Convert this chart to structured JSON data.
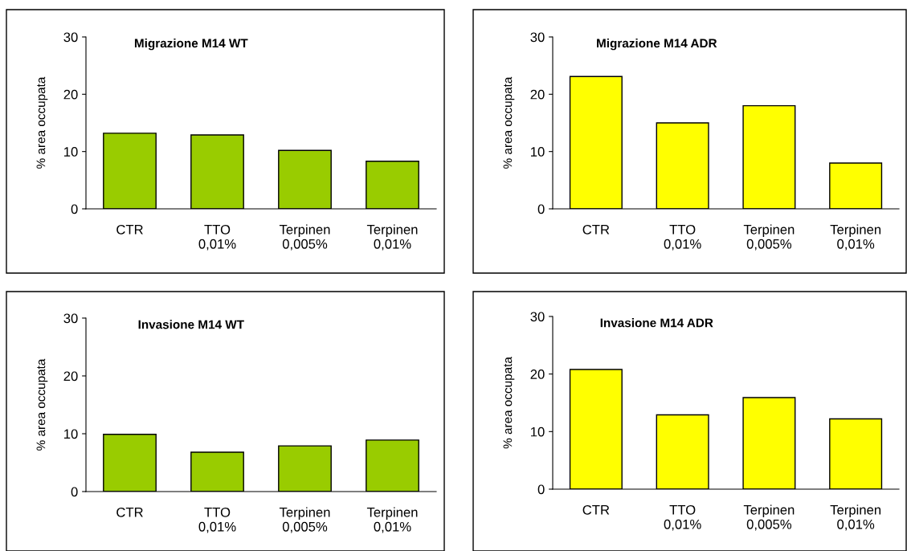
{
  "chart_data": [
    {
      "type": "bar",
      "title": "Migrazione M14 WT",
      "ylabel": "% area occupata",
      "categories": [
        "CTR",
        "TTO\n0,01%",
        "Terpinen\n0,005%",
        "Terpinen\n0,01%"
      ],
      "values": [
        13.2,
        12.9,
        10.2,
        8.3
      ],
      "color": "#99cc00",
      "ylim": [
        0,
        30
      ],
      "yticks": [
        0,
        10,
        20,
        30
      ],
      "grid": false
    },
    {
      "type": "bar",
      "title": "Migrazione M14 ADR",
      "ylabel": "% area occupata",
      "categories": [
        "CTR",
        "TTO\n0,01%",
        "Terpinen\n0,005%",
        "Terpinen\n0,01%"
      ],
      "values": [
        23.1,
        15.0,
        18.0,
        8.0
      ],
      "color": "#ffff00",
      "ylim": [
        0,
        30
      ],
      "yticks": [
        0,
        10,
        20,
        30
      ],
      "grid": false
    },
    {
      "type": "bar",
      "title": "Invasione M14 WT",
      "ylabel": "% area occupata",
      "categories": [
        "CTR",
        "TTO\n0,01%",
        "Terpinen\n0,005%",
        "Terpinen\n0,01%"
      ],
      "values": [
        9.9,
        6.8,
        7.9,
        8.9
      ],
      "color": "#99cc00",
      "ylim": [
        0,
        30
      ],
      "yticks": [
        0,
        10,
        20,
        30
      ],
      "grid": false
    },
    {
      "type": "bar",
      "title": "Invasione M14 ADR",
      "ylabel": "% area occupata",
      "categories": [
        "CTR",
        "TTO\n0,01%",
        "Terpinen\n0,005%",
        "Terpinen\n0,01%"
      ],
      "values": [
        20.8,
        12.9,
        15.9,
        12.2
      ],
      "color": "#ffff00",
      "ylim": [
        0,
        30
      ],
      "yticks": [
        0,
        10,
        20,
        30
      ],
      "grid": false
    }
  ]
}
